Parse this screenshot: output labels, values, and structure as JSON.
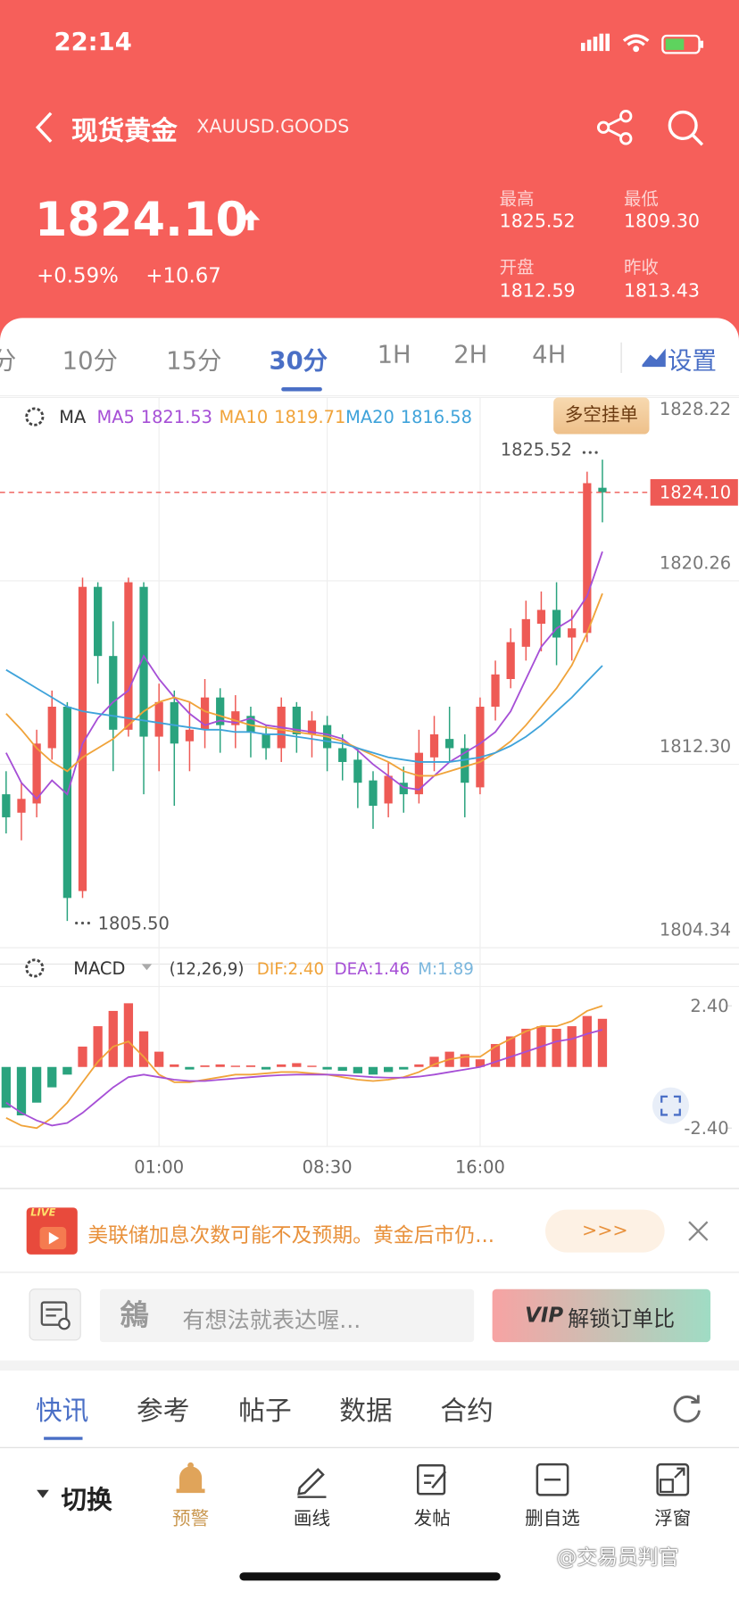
{
  "status": {
    "time": "22:14"
  },
  "header": {
    "title": "现货黄金",
    "code": "XAUUSD.GOODS",
    "price": "1824.10",
    "change_pct": "+0.59%",
    "change": "+10.67",
    "stats": [
      {
        "label": "最高",
        "value": "1825.52"
      },
      {
        "label": "最低",
        "value": "1809.30"
      },
      {
        "label": "开盘",
        "value": "1812.59"
      },
      {
        "label": "昨收",
        "value": "1813.43"
      }
    ]
  },
  "tabs": [
    "分",
    "10分",
    "15分",
    "30分",
    "1H",
    "2H",
    "4H"
  ],
  "settings": "设置",
  "chart_data": {
    "type": "candlestick",
    "legend_title": "MA",
    "order_button": "多空挂单",
    "categories": [
      null,
      null,
      null,
      null,
      null,
      null,
      null,
      null,
      null,
      null,
      "01:00",
      null,
      null,
      null,
      null,
      null,
      null,
      null,
      null,
      null,
      null,
      "08:30",
      null,
      null,
      null,
      null,
      null,
      null,
      null,
      null,
      null,
      "16:00",
      null,
      null,
      null,
      null,
      null,
      null,
      null,
      null
    ],
    "ylim": [
      1804.34,
      1828.22
    ],
    "yticks": [
      1828.22,
      1820.26,
      {
        "value": 1812.3,
        "label": "1812.30"
      },
      1804.34
    ],
    "grid": true,
    "up_color": "#ee5a55",
    "down_color": "#2aa37e",
    "candles": {
      "open": [
        1811.0,
        1810.2,
        1810.6,
        1813.0,
        1814.8,
        1806.8,
        1820.0,
        1817.0,
        1813.8,
        1820.0,
        1813.5,
        1815.0,
        1813.3,
        1813.8,
        1815.2,
        1814.0,
        1814.4,
        1813.6,
        1813.0,
        1814.8,
        1813.6,
        1814.0,
        1813.0,
        1812.5,
        1811.6,
        1810.6,
        1811.5,
        1811.0,
        1812.6,
        1813.4,
        1813.0,
        1811.3,
        1814.8,
        1816.0,
        1817.4,
        1818.4,
        1819.0,
        1817.8,
        1818.0,
        1824.3
      ],
      "high": [
        1812,
        1811.5,
        1813.8,
        1815.5,
        1815.0,
        1820.4,
        1820.2,
        1818.5,
        1820.4,
        1820.2,
        1815.8,
        1815.5,
        1815.0,
        1816.0,
        1815.6,
        1815.3,
        1814.8,
        1814.0,
        1815.2,
        1815.0,
        1814.6,
        1814.4,
        1813.6,
        1813.0,
        1812.0,
        1812.4,
        1812.2,
        1813.8,
        1814.4,
        1814.8,
        1813.6,
        1815.2,
        1816.8,
        1818.2,
        1819.4,
        1819.8,
        1820.2,
        1819.0,
        1825.0,
        1825.52
      ],
      "low": [
        1809.3,
        1809.0,
        1810.0,
        1812.5,
        1805.5,
        1806.5,
        1815.8,
        1812.0,
        1813.5,
        1811.0,
        1812.0,
        1810.5,
        1812.0,
        1813.0,
        1812.8,
        1813.0,
        1812.6,
        1812.5,
        1812.4,
        1812.8,
        1812.6,
        1812.0,
        1811.6,
        1810.4,
        1809.5,
        1810.0,
        1810.2,
        1810.6,
        1812.0,
        1812.4,
        1810.0,
        1811.0,
        1814.2,
        1815.6,
        1816.8,
        1817.2,
        1816.6,
        1816.8,
        1817.6,
        1822.8
      ],
      "close": [
        1810.0,
        1810.8,
        1813.2,
        1814.8,
        1806.5,
        1820.0,
        1817.0,
        1813.8,
        1820.2,
        1813.5,
        1815.0,
        1813.2,
        1813.8,
        1815.2,
        1814.0,
        1814.6,
        1813.7,
        1813.0,
        1814.8,
        1813.6,
        1814.2,
        1813.0,
        1812.4,
        1811.5,
        1810.5,
        1811.8,
        1811.0,
        1812.8,
        1813.6,
        1813.0,
        1811.5,
        1814.8,
        1816.2,
        1817.6,
        1818.6,
        1819.0,
        1817.8,
        1818.2,
        1824.5,
        1824.1
      ]
    },
    "series": [
      {
        "name": "MA5",
        "color": "#a64fd6",
        "values": [
          1812.8,
          1811.5,
          1810.8,
          1811.6,
          1811.0,
          1813.2,
          1814.3,
          1815.0,
          1815.5,
          1817.0,
          1816.0,
          1815.2,
          1814.5,
          1814.0,
          1814.2,
          1814.1,
          1814.3,
          1814.0,
          1813.9,
          1813.8,
          1813.7,
          1813.6,
          1813.4,
          1812.9,
          1812.3,
          1811.8,
          1811.3,
          1811.2,
          1811.8,
          1812.4,
          1812.8,
          1813.2,
          1813.7,
          1814.6,
          1816.0,
          1817.4,
          1818.2,
          1818.6,
          1819.6,
          1821.53
        ]
      },
      {
        "name": "MA10",
        "color": "#f0a33a",
        "values": [
          1814.5,
          1813.8,
          1813.0,
          1812.4,
          1812.0,
          1812.6,
          1813.0,
          1813.4,
          1814.0,
          1814.6,
          1815.0,
          1815.2,
          1815.0,
          1814.6,
          1814.4,
          1814.2,
          1814.0,
          1813.9,
          1813.8,
          1813.7,
          1813.6,
          1813.5,
          1813.3,
          1813.0,
          1812.7,
          1812.4,
          1812.0,
          1811.8,
          1811.8,
          1812.0,
          1812.2,
          1812.4,
          1812.8,
          1813.3,
          1814.0,
          1814.8,
          1815.6,
          1816.6,
          1818.0,
          1819.71
        ]
      },
      {
        "name": "MA20",
        "color": "#3fa3da",
        "values": [
          1816.4,
          1816.0,
          1815.6,
          1815.2,
          1814.8,
          1814.6,
          1814.5,
          1814.4,
          1814.3,
          1814.2,
          1814.1,
          1814.0,
          1813.9,
          1813.8,
          1813.8,
          1813.7,
          1813.7,
          1813.6,
          1813.6,
          1813.5,
          1813.4,
          1813.3,
          1813.2,
          1813.0,
          1812.8,
          1812.6,
          1812.5,
          1812.4,
          1812.4,
          1812.4,
          1812.5,
          1812.6,
          1812.8,
          1813.1,
          1813.5,
          1814.0,
          1814.6,
          1815.2,
          1815.9,
          1816.58
        ]
      }
    ],
    "max_label": {
      "value": 1825.52,
      "label": "1825.52"
    },
    "min_label": {
      "value": 1805.5,
      "label": "1805.50"
    },
    "last_price": {
      "value": 1824.1,
      "label": "1824.10"
    },
    "macd": {
      "title": "MACD",
      "params": "(12,26,9)",
      "ylim": [
        -3.12,
        3.16
      ],
      "yticks": [
        {
          "value": 2.4,
          "label": "2.40"
        },
        {
          "value": -2.4,
          "label": "-2.40"
        }
      ],
      "hist": {
        "label": "M:1.89",
        "color": "#7ab6dd",
        "values": [
          -1.6,
          -1.9,
          -1.4,
          -0.8,
          -0.3,
          0.8,
          1.6,
          2.2,
          2.5,
          1.4,
          0.6,
          0.1,
          -0.1,
          0.06,
          0.1,
          0.05,
          0.06,
          -0.1,
          0.1,
          0.15,
          0.05,
          -0.1,
          -0.15,
          -0.25,
          -0.3,
          -0.2,
          -0.1,
          0.1,
          0.4,
          0.6,
          0.5,
          0.3,
          0.9,
          1.2,
          1.5,
          1.6,
          1.5,
          1.6,
          2.0,
          1.89
        ]
      },
      "series": [
        {
          "label": "DIF:2.40",
          "color": "#f0a33a",
          "values": [
            -2.0,
            -2.3,
            -2.4,
            -2.0,
            -1.4,
            -0.6,
            0.2,
            0.8,
            1.0,
            0.4,
            -0.3,
            -0.6,
            -0.6,
            -0.5,
            -0.4,
            -0.3,
            -0.3,
            -0.25,
            -0.2,
            -0.2,
            -0.25,
            -0.3,
            -0.4,
            -0.5,
            -0.55,
            -0.5,
            -0.4,
            -0.2,
            0.1,
            0.3,
            0.4,
            0.4,
            0.8,
            1.1,
            1.4,
            1.6,
            1.6,
            1.8,
            2.2,
            2.4
          ]
        },
        {
          "label": "DEA:1.46",
          "color": "#a64fd6",
          "values": [
            -1.4,
            -1.8,
            -2.1,
            -2.3,
            -2.2,
            -1.8,
            -1.3,
            -0.8,
            -0.4,
            -0.3,
            -0.4,
            -0.5,
            -0.55,
            -0.55,
            -0.5,
            -0.45,
            -0.4,
            -0.35,
            -0.32,
            -0.3,
            -0.3,
            -0.3,
            -0.32,
            -0.36,
            -0.4,
            -0.42,
            -0.42,
            -0.38,
            -0.3,
            -0.2,
            -0.1,
            0.0,
            0.2,
            0.4,
            0.6,
            0.8,
            1.0,
            1.1,
            1.3,
            1.46
          ]
        }
      ]
    }
  },
  "news": {
    "badge": "LIVE",
    "text": "美联储加息次数可能不及预期。黄金后市仍...",
    "more": ">>>"
  },
  "comment": {
    "placeholder": "有想法就表达喔...",
    "vip": "VIP",
    "unlock": "解锁订单比"
  },
  "bottom_tabs": [
    "快讯",
    "参考",
    "帖子",
    "数据",
    "合约"
  ],
  "toolbar": {
    "switch": "切换",
    "items": [
      "预警",
      "画线",
      "发帖",
      "删自选",
      "浮窗"
    ]
  },
  "watermark": "@交易员判官"
}
